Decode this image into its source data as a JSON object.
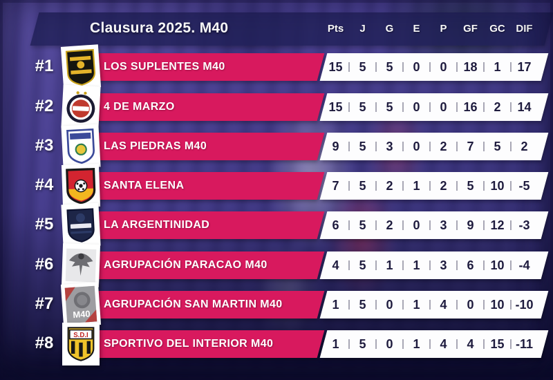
{
  "chart_data": {
    "type": "table",
    "title": "Clausura 2025. M40",
    "columns": [
      "Pts",
      "J",
      "G",
      "E",
      "P",
      "GF",
      "GC",
      "DIF"
    ],
    "rows": [
      {
        "rank": "#1",
        "team": "LOS SUPLENTES M40",
        "values": [
          15,
          5,
          5,
          0,
          0,
          18,
          1,
          17
        ]
      },
      {
        "rank": "#2",
        "team": "4 DE MARZO",
        "values": [
          15,
          5,
          5,
          0,
          0,
          16,
          2,
          14
        ]
      },
      {
        "rank": "#3",
        "team": "LAS PIEDRAS M40",
        "values": [
          9,
          5,
          3,
          0,
          2,
          7,
          5,
          2
        ]
      },
      {
        "rank": "#4",
        "team": "SANTA ELENA",
        "values": [
          7,
          5,
          2,
          1,
          2,
          5,
          10,
          -5
        ]
      },
      {
        "rank": "#5",
        "team": "LA ARGENTINIDAD",
        "values": [
          6,
          5,
          2,
          0,
          3,
          9,
          12,
          -3
        ]
      },
      {
        "rank": "#6",
        "team": "AGRUPACIÓN PARACAO M40",
        "values": [
          4,
          5,
          1,
          1,
          3,
          6,
          10,
          -4
        ]
      },
      {
        "rank": "#7",
        "team": "AGRUPACIÓN SAN MARTIN M40",
        "values": [
          1,
          5,
          0,
          1,
          4,
          0,
          10,
          -10
        ],
        "logo_text": "M40"
      },
      {
        "rank": "#8",
        "team": "SPORTIVO DEL INTERIOR M40",
        "values": [
          1,
          5,
          0,
          1,
          4,
          4,
          15,
          -11
        ],
        "logo_text": "S.D.I"
      }
    ]
  },
  "colors": {
    "banner_pink": "#d8195e",
    "header_band_navy": "#21215a",
    "stats_text_navy": "#1e1b3e",
    "background_purple": "#4c4294",
    "text_white": "#ffffff"
  }
}
